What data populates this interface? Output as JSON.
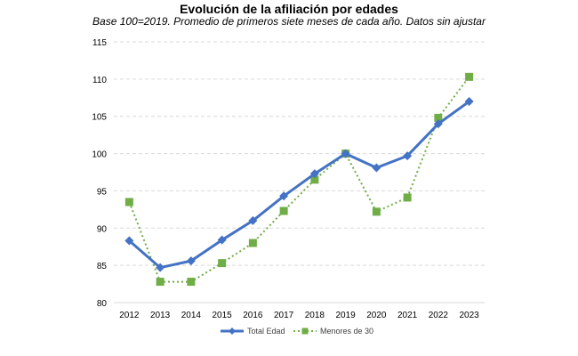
{
  "chart_data": {
    "type": "line",
    "title": "Evolución de la afiliación por edades",
    "subtitle": "Base 100=2019. Promedio de primeros siete meses de cada año. Datos sin ajustar",
    "xlabel": "",
    "ylabel": "",
    "categories": [
      "2012",
      "2013",
      "2014",
      "2015",
      "2016",
      "2017",
      "2018",
      "2019",
      "2020",
      "2021",
      "2022",
      "2023"
    ],
    "ylim": [
      80,
      115
    ],
    "yticks": [
      80,
      85,
      90,
      95,
      100,
      105,
      110,
      115
    ],
    "grid": true,
    "legend_position": "bottom",
    "series": [
      {
        "name": "Total Edad",
        "values": [
          88.3,
          84.7,
          85.6,
          88.4,
          91.0,
          94.3,
          97.3,
          100.0,
          98.1,
          99.7,
          104.0,
          107.0
        ],
        "color": "#4472c4",
        "line_style": "solid",
        "marker": "diamond"
      },
      {
        "name": "Menores de 30",
        "values": [
          93.5,
          82.8,
          82.8,
          85.3,
          88.0,
          92.3,
          96.5,
          100.0,
          92.2,
          94.1,
          104.8,
          110.3
        ],
        "color": "#70ad47",
        "line_style": "dotted",
        "marker": "square"
      }
    ]
  }
}
